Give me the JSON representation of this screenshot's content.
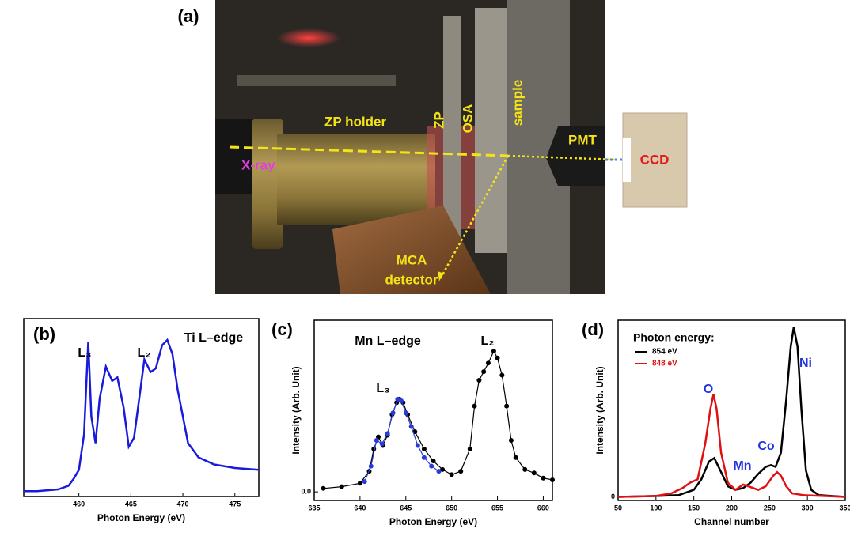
{
  "panel_a": {
    "label": "(a)",
    "zp_holder": "ZP holder",
    "zp": "ZP",
    "osa": "OSA",
    "sample": "sample",
    "pmt": "PMT",
    "xray": "X-ray",
    "ccd": "CCD",
    "mca": "MCA",
    "detector": "detector"
  },
  "chart_data": [
    {
      "type": "line",
      "panel": "(b)",
      "xlabel": "Photon Energy (eV)",
      "xlim": [
        454.7,
        477.3
      ],
      "xticks": [
        460,
        465,
        470,
        475
      ],
      "ylim": [
        0,
        1
      ],
      "annotations": [
        {
          "text": "L₃",
          "color": "#000000"
        },
        {
          "text": "L₂",
          "color": "#000000"
        },
        {
          "text": "Ti  L–edge",
          "color": "#000000"
        }
      ],
      "series": [
        {
          "color": "#1a1adc",
          "markers": false,
          "x": [
            454.7,
            456,
            458,
            459,
            459.5,
            460,
            460.5,
            460.9,
            461.2,
            461.6,
            462,
            462.6,
            463.2,
            463.7,
            464.3,
            464.8,
            465.3,
            465.8,
            466.3,
            466.9,
            467.4,
            468,
            468.5,
            469,
            469.5,
            470.5,
            471.5,
            473,
            475,
            477.3
          ],
          "values": [
            0.03,
            0.03,
            0.04,
            0.06,
            0.1,
            0.15,
            0.35,
            0.87,
            0.45,
            0.3,
            0.55,
            0.73,
            0.65,
            0.67,
            0.5,
            0.28,
            0.33,
            0.55,
            0.77,
            0.7,
            0.72,
            0.85,
            0.88,
            0.8,
            0.6,
            0.3,
            0.22,
            0.18,
            0.16,
            0.15
          ]
        }
      ]
    },
    {
      "type": "line",
      "panel": "(c)",
      "xlabel": "Photon Energy (eV)",
      "ylabel": "Intensity (Arb. Unit)",
      "xlim": [
        635,
        661
      ],
      "xticks": [
        635,
        640,
        645,
        650,
        655,
        660
      ],
      "ylim": [
        -0.05,
        1
      ],
      "yticks": [
        {
          "value": 0,
          "label": "0.0"
        }
      ],
      "annotations": [
        {
          "text": "Mn  L–edge",
          "color": "#000000"
        },
        {
          "text": "L₃",
          "color": "#000000"
        },
        {
          "text": "L₂",
          "color": "#000000"
        }
      ],
      "series": [
        {
          "color": "#000000",
          "markers": true,
          "x": [
            636,
            638,
            640,
            641,
            641.5,
            642,
            642.5,
            643,
            643.5,
            644,
            644.3,
            644.7,
            645.2,
            646,
            647,
            648,
            649,
            650,
            651,
            652,
            652.5,
            653,
            653.5,
            654,
            654.6,
            655,
            655.5,
            656,
            656.5,
            657,
            658,
            659,
            660,
            661
          ],
          "values": [
            0.02,
            0.03,
            0.05,
            0.12,
            0.25,
            0.32,
            0.27,
            0.33,
            0.45,
            0.52,
            0.54,
            0.52,
            0.45,
            0.35,
            0.25,
            0.18,
            0.13,
            0.1,
            0.12,
            0.25,
            0.5,
            0.65,
            0.7,
            0.75,
            0.82,
            0.78,
            0.68,
            0.5,
            0.3,
            0.2,
            0.13,
            0.11,
            0.08,
            0.07
          ]
        },
        {
          "color": "#2a3ad8",
          "markers": true,
          "x": [
            640.5,
            641.2,
            641.8,
            642.4,
            643,
            643.6,
            644.1,
            644.5,
            645,
            645.6,
            646.3,
            647,
            647.8,
            648.6
          ],
          "values": [
            0.06,
            0.15,
            0.3,
            0.28,
            0.34,
            0.46,
            0.54,
            0.53,
            0.46,
            0.38,
            0.27,
            0.2,
            0.15,
            0.12
          ]
        }
      ]
    },
    {
      "type": "line",
      "panel": "(d)",
      "xlabel": "Channel number",
      "ylabel": "Intensity (Arb. Unit)",
      "xlim": [
        50,
        350
      ],
      "xticks": [
        50,
        100,
        150,
        200,
        250,
        300,
        350
      ],
      "ylim": [
        -0.02,
        1
      ],
      "yticks": [
        0
      ],
      "legend_title": "Photon energy:",
      "annotations": [
        {
          "text": "O",
          "color": "#2233dd"
        },
        {
          "text": "Mn",
          "color": "#2233dd"
        },
        {
          "text": "Co",
          "color": "#2233dd"
        },
        {
          "text": "Ni",
          "color": "#2233dd"
        }
      ],
      "series": [
        {
          "name": "854 eV",
          "color": "#000000",
          "markers": false,
          "x": [
            50,
            100,
            130,
            150,
            160,
            170,
            177,
            185,
            195,
            205,
            215,
            225,
            235,
            245,
            252,
            258,
            265,
            272,
            278,
            282,
            287,
            292,
            298,
            305,
            315,
            350
          ],
          "values": [
            0,
            0.005,
            0.01,
            0.04,
            0.1,
            0.2,
            0.22,
            0.15,
            0.06,
            0.04,
            0.05,
            0.08,
            0.13,
            0.17,
            0.18,
            0.17,
            0.25,
            0.55,
            0.85,
            0.96,
            0.85,
            0.5,
            0.15,
            0.04,
            0.01,
            0
          ]
        },
        {
          "name": "848 eV",
          "color": "#e01010",
          "markers": false,
          "x": [
            50,
            100,
            120,
            135,
            145,
            155,
            165,
            172,
            176,
            180,
            186,
            195,
            205,
            215,
            222,
            235,
            245,
            255,
            260,
            265,
            272,
            280,
            295,
            350
          ],
          "values": [
            0,
            0.005,
            0.02,
            0.05,
            0.08,
            0.1,
            0.3,
            0.5,
            0.58,
            0.5,
            0.25,
            0.08,
            0.04,
            0.07,
            0.06,
            0.04,
            0.06,
            0.12,
            0.14,
            0.12,
            0.06,
            0.02,
            0.01,
            0
          ]
        }
      ]
    }
  ]
}
